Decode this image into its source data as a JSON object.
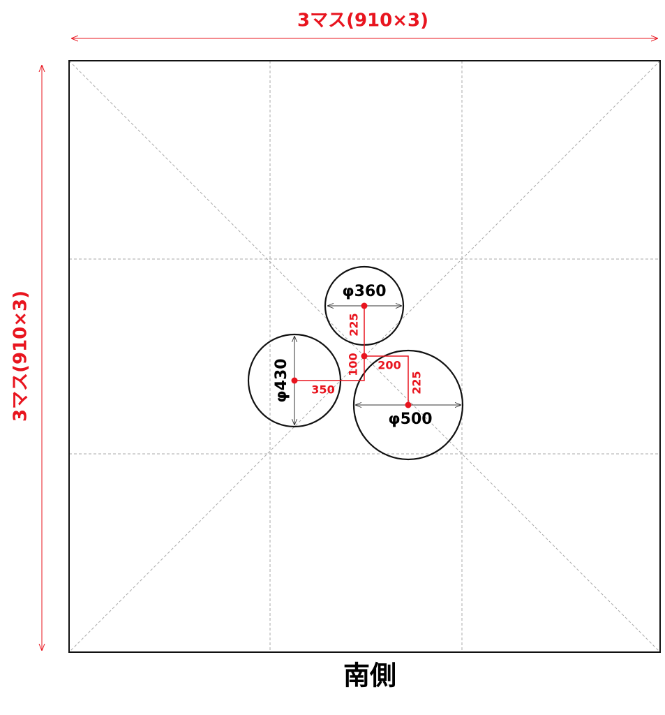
{
  "dimensions": {
    "top": "3マス(910×3)",
    "left": "3マス(910×3)"
  },
  "circles": [
    {
      "label": "φ360"
    },
    {
      "label": "φ430"
    },
    {
      "label": "φ500"
    }
  ],
  "offsets": [
    "225",
    "100",
    "350",
    "200",
    "225"
  ],
  "footer": "南側"
}
